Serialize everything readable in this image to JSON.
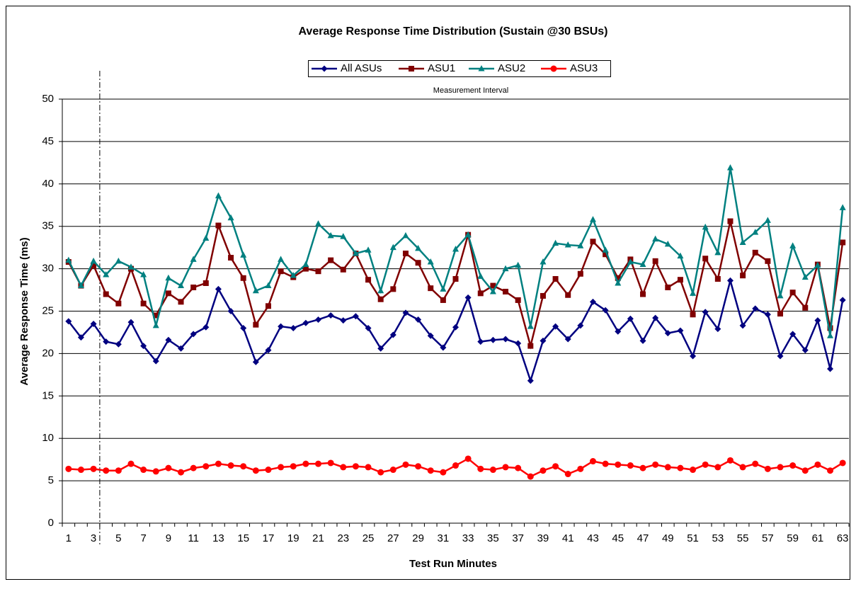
{
  "chart_data": {
    "type": "line",
    "title": "Average Response Time Distribution (Sustain @30 BSUs)",
    "x_label": "Test Run Minutes",
    "y_label": "Average Response Time (ms)",
    "annotation": "Measurement Interval",
    "categories": [
      1,
      null,
      3,
      null,
      5,
      null,
      7,
      null,
      9,
      null,
      11,
      null,
      13,
      null,
      15,
      null,
      17,
      null,
      19,
      null,
      21,
      null,
      23,
      null,
      25,
      null,
      27,
      null,
      29,
      null,
      31,
      null,
      33,
      null,
      35,
      null,
      37,
      null,
      39,
      null,
      41,
      null,
      43,
      null,
      45,
      null,
      47,
      null,
      49,
      null,
      51,
      null,
      53,
      null,
      55,
      null,
      57,
      null,
      59,
      null,
      61,
      null,
      63
    ],
    "ylim": [
      0,
      50
    ],
    "yticks": [
      0,
      5,
      10,
      15,
      20,
      25,
      30,
      35,
      40,
      45,
      50
    ],
    "grid": true,
    "legend": "top",
    "series": [
      {
        "name": "All ASUs",
        "color": "#000080",
        "marker": "diamond",
        "values": [
          23.8,
          21.9,
          23.5,
          21.4,
          21.1,
          23.7,
          20.9,
          19.1,
          21.6,
          20.6,
          22.3,
          23.1,
          27.6,
          25.0,
          23.0,
          19.0,
          20.4,
          23.2,
          23.0,
          23.6,
          24.0,
          24.5,
          23.9,
          24.4,
          23.0,
          20.6,
          22.2,
          24.8,
          24.0,
          22.1,
          20.7,
          23.1,
          26.6,
          21.4,
          21.6,
          21.7,
          21.2,
          16.8,
          21.5,
          23.2,
          21.7,
          23.3,
          26.1,
          25.1,
          22.6,
          24.1,
          21.5,
          24.2,
          22.4,
          22.7,
          19.7,
          24.9,
          22.9,
          28.6,
          23.3,
          25.3,
          24.6,
          19.7,
          22.3,
          20.4,
          23.9,
          18.2,
          26.3
        ]
      },
      {
        "name": "ASU1",
        "color": "#800000",
        "marker": "square",
        "values": [
          30.8,
          28.0,
          30.4,
          27.0,
          25.9,
          30.0,
          25.9,
          24.5,
          27.1,
          26.1,
          27.8,
          28.3,
          35.1,
          31.3,
          28.9,
          23.4,
          25.6,
          29.7,
          29.0,
          30.0,
          29.7,
          31.0,
          29.9,
          31.8,
          28.7,
          26.4,
          27.6,
          31.8,
          30.7,
          27.7,
          26.3,
          28.8,
          34.0,
          27.1,
          28.0,
          27.3,
          26.3,
          20.9,
          26.8,
          28.8,
          26.9,
          29.4,
          33.2,
          31.7,
          28.9,
          31.1,
          27.0,
          30.9,
          27.8,
          28.7,
          24.6,
          31.2,
          28.8,
          35.6,
          29.2,
          31.9,
          30.9,
          24.7,
          27.2,
          25.4,
          30.5,
          23.0,
          33.1
        ]
      },
      {
        "name": "ASU2",
        "color": "#008080",
        "marker": "triangle",
        "values": [
          31.0,
          28.0,
          30.9,
          29.3,
          30.9,
          30.2,
          29.3,
          23.3,
          28.9,
          28.0,
          31.1,
          33.6,
          38.6,
          36.0,
          31.6,
          27.4,
          28.0,
          31.1,
          29.2,
          30.5,
          35.3,
          33.9,
          33.8,
          31.8,
          32.2,
          27.4,
          32.5,
          33.9,
          32.4,
          30.8,
          27.6,
          32.3,
          34.0,
          29.1,
          27.3,
          30.0,
          30.4,
          23.2,
          30.8,
          33.0,
          32.8,
          32.7,
          35.8,
          32.2,
          28.3,
          30.8,
          30.5,
          33.5,
          32.9,
          31.5,
          27.1,
          34.9,
          31.9,
          41.9,
          33.1,
          34.3,
          35.7,
          26.8,
          32.7,
          29.0,
          30.4,
          22.1,
          37.2
        ]
      },
      {
        "name": "ASU3",
        "color": "#ff0000",
        "marker": "circle",
        "values": [
          6.4,
          6.3,
          6.4,
          6.2,
          6.2,
          7.0,
          6.3,
          6.1,
          6.5,
          6.0,
          6.5,
          6.7,
          7.0,
          6.8,
          6.7,
          6.2,
          6.3,
          6.6,
          6.7,
          7.0,
          7.0,
          7.1,
          6.6,
          6.7,
          6.6,
          6.0,
          6.3,
          6.9,
          6.7,
          6.2,
          6.0,
          6.8,
          7.6,
          6.4,
          6.3,
          6.6,
          6.5,
          5.5,
          6.2,
          6.7,
          5.8,
          6.4,
          7.3,
          7.0,
          6.9,
          6.8,
          6.5,
          6.9,
          6.6,
          6.5,
          6.3,
          6.9,
          6.6,
          7.4,
          6.6,
          7.0,
          6.4,
          6.6,
          6.8,
          6.2,
          6.9,
          6.2,
          7.1
        ]
      }
    ]
  }
}
